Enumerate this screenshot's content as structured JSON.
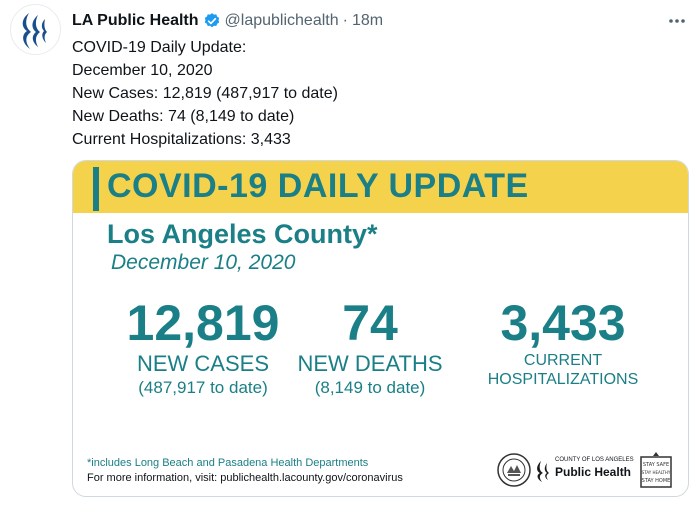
{
  "tweet": {
    "author_name": "LA Public Health",
    "handle": "@lapublichealth",
    "separator": "·",
    "time": "18m",
    "lines": [
      "COVID-19 Daily Update:",
      "December 10, 2020",
      "New Cases: 12,819 (487,917 to date)",
      "New Deaths: 74 (8,149 to date)",
      "Current Hospitalizations: 3,433"
    ]
  },
  "icons": {
    "verified": "verified-badge-icon",
    "more": "more-options-icon",
    "avatar": "la-public-health-logo"
  },
  "card": {
    "title": "COVID-19 DAILY UPDATE",
    "county": "Los Angeles County*",
    "date": "December 10, 2020",
    "stats": {
      "cases": {
        "value": "12,819",
        "label": "NEW CASES",
        "sub": "(487,917 to date)"
      },
      "deaths": {
        "value": "74",
        "label": "NEW DEATHS",
        "sub": "(8,149 to date)"
      },
      "hospitalizations": {
        "value": "3,433",
        "label_line1": "CURRENT",
        "label_line2": "HOSPITALIZATIONS"
      }
    },
    "footnote": "*includes Long Beach and Pasadena Health Departments",
    "info": "For more information, visit: publichealth.lacounty.gov/coronavirus",
    "logo_small": "COUNTY OF LOS ANGELES",
    "logo_big": "Public Health",
    "stay_badge": [
      "STAY SAFE",
      "STAY HEALTHY",
      "STAY HOME"
    ]
  },
  "colors": {
    "teal": "#1a7f86",
    "yellow": "#f5d24c",
    "verified_blue": "#1d9bf0",
    "gray_text": "#536471"
  }
}
